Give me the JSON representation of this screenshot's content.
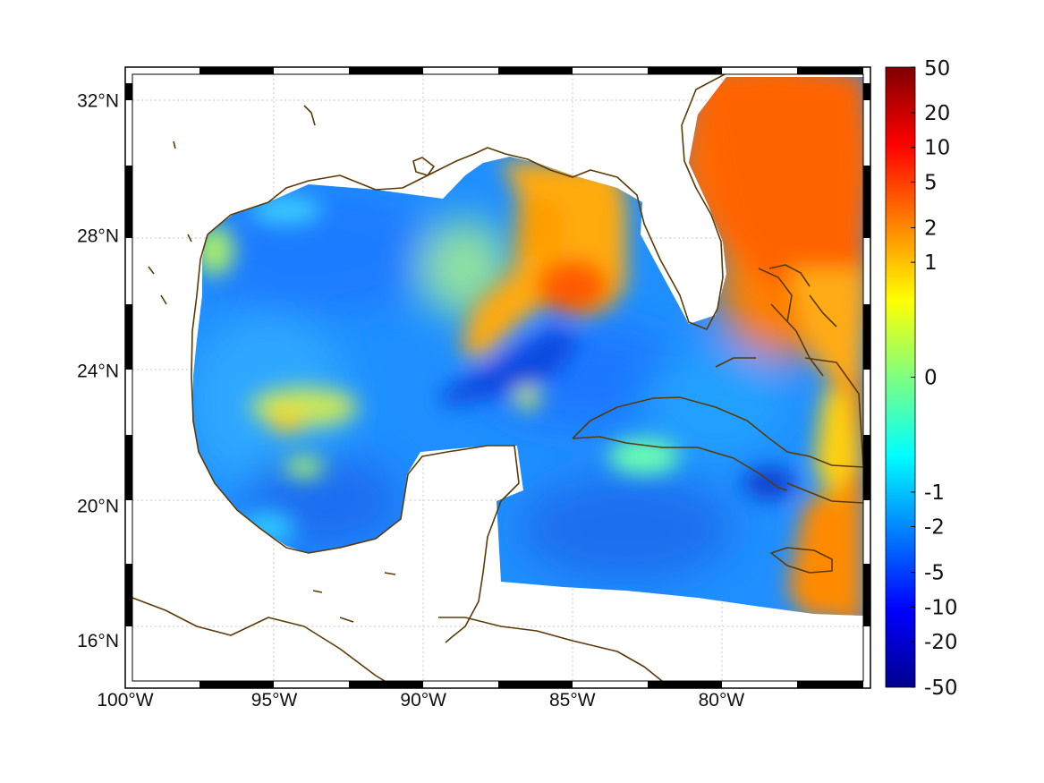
{
  "map": {
    "type": "filled-contour map",
    "extent": {
      "lon_min": -100,
      "lon_max": -75,
      "lat_min": 14.6,
      "lat_max": 33
    },
    "lon_ticks": [
      {
        "value": -100,
        "label": "100°W"
      },
      {
        "value": -95,
        "label": "95°W"
      },
      {
        "value": -90,
        "label": "90°W"
      },
      {
        "value": -85,
        "label": "85°W"
      },
      {
        "value": -80,
        "label": "80°W"
      }
    ],
    "lat_ticks": [
      {
        "value": 32,
        "label": "32°N"
      },
      {
        "value": 28,
        "label": "28°N"
      },
      {
        "value": 24,
        "label": "24°N"
      },
      {
        "value": 20,
        "label": "20°N"
      },
      {
        "value": 16,
        "label": "16°N"
      }
    ],
    "grid": true,
    "coastline_color": "#5b3a06",
    "land_color": "#ffffff"
  },
  "colorbar": {
    "position": "right",
    "colormap": "jet",
    "ticks": [
      {
        "value": 50,
        "label": "50"
      },
      {
        "value": 20,
        "label": "20"
      },
      {
        "value": 10,
        "label": "10"
      },
      {
        "value": 5,
        "label": "5"
      },
      {
        "value": 2,
        "label": "2"
      },
      {
        "value": 1,
        "label": "1"
      },
      {
        "value": 0,
        "label": "0"
      },
      {
        "value": -1,
        "label": "-1"
      },
      {
        "value": -2,
        "label": "-2"
      },
      {
        "value": -5,
        "label": "-5"
      },
      {
        "value": -10,
        "label": "-10"
      },
      {
        "value": -20,
        "label": "-20"
      },
      {
        "value": -50,
        "label": "-50"
      }
    ]
  }
}
